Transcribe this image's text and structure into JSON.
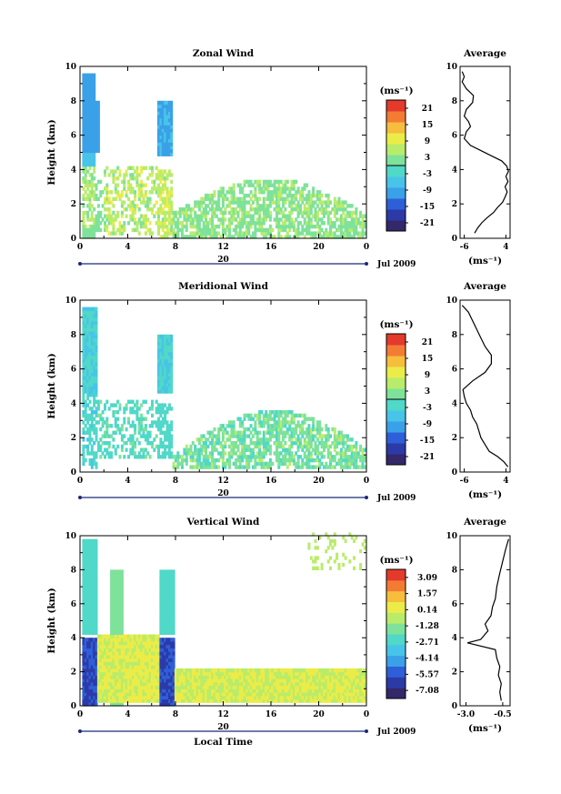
{
  "chart_data": [
    {
      "type": "heatmap",
      "title": "Zonal Wind",
      "ylabel": "Height (km)",
      "xlabel": "",
      "xticks": [
        "0",
        "4",
        "8",
        "12",
        "16",
        "20",
        "0"
      ],
      "yticks": [
        "0",
        "2",
        "4",
        "6",
        "8",
        "10"
      ],
      "xlim": [
        0,
        24
      ],
      "ylim": [
        0,
        10
      ],
      "date_axis_day": "20",
      "date_label": "Jul 2009",
      "colorbar": {
        "unit": "(ms⁻¹)",
        "ticks": [
          "21",
          "15",
          "9",
          "3",
          "-3",
          "-9",
          "-15",
          "-21"
        ],
        "range": [
          -24,
          24
        ]
      },
      "profile": {
        "title": "Average",
        "xlabel": "(ms⁻¹)",
        "xticks": [
          "-6",
          "4"
        ],
        "xlim": [
          -7,
          5
        ],
        "yticks": [
          "0",
          "2",
          "4",
          "6",
          "8",
          "10"
        ],
        "ylim": [
          0,
          10
        ],
        "points": [
          [
            -3.5,
            0.3
          ],
          [
            -2.8,
            0.6
          ],
          [
            -1.8,
            0.9
          ],
          [
            -0.5,
            1.2
          ],
          [
            1.0,
            1.5
          ],
          [
            2.0,
            1.8
          ],
          [
            3.2,
            2.1
          ],
          [
            3.8,
            2.4
          ],
          [
            4.3,
            2.7
          ],
          [
            3.8,
            3.0
          ],
          [
            4.5,
            3.3
          ],
          [
            4.0,
            3.6
          ],
          [
            4.6,
            3.9
          ],
          [
            4.2,
            4.2
          ],
          [
            3.0,
            4.5
          ],
          [
            0.5,
            4.8
          ],
          [
            -2.0,
            5.1
          ],
          [
            -4.5,
            5.4
          ],
          [
            -6.0,
            5.8
          ],
          [
            -5.5,
            6.2
          ],
          [
            -4.5,
            6.5
          ],
          [
            -5.0,
            6.8
          ],
          [
            -6.0,
            7.1
          ],
          [
            -5.5,
            7.5
          ],
          [
            -4.0,
            7.9
          ],
          [
            -3.8,
            8.3
          ],
          [
            -5.5,
            8.7
          ],
          [
            -6.5,
            9.1
          ],
          [
            -6.0,
            9.4
          ],
          [
            -6.5,
            9.7
          ]
        ]
      }
    },
    {
      "type": "heatmap",
      "title": "Meridional Wind",
      "ylabel": "Height (km)",
      "xlabel": "",
      "xticks": [
        "0",
        "4",
        "8",
        "12",
        "16",
        "20",
        "0"
      ],
      "yticks": [
        "0",
        "2",
        "4",
        "6",
        "8",
        "10"
      ],
      "xlim": [
        0,
        24
      ],
      "ylim": [
        0,
        10
      ],
      "date_axis_day": "20",
      "date_label": "Jul 2009",
      "colorbar": {
        "unit": "(ms⁻¹)",
        "ticks": [
          "21",
          "15",
          "9",
          "3",
          "-3",
          "-9",
          "-15",
          "-21"
        ],
        "range": [
          -24,
          24
        ]
      },
      "profile": {
        "title": "Average",
        "xlabel": "(ms⁻¹)",
        "xticks": [
          "-6",
          "4"
        ],
        "xlim": [
          -7,
          5
        ],
        "yticks": [
          "0",
          "2",
          "4",
          "6",
          "8",
          "10"
        ],
        "ylim": [
          0,
          10
        ],
        "points": [
          [
            4.5,
            0.3
          ],
          [
            3.5,
            0.6
          ],
          [
            2.0,
            0.9
          ],
          [
            0.0,
            1.2
          ],
          [
            -1.0,
            1.6
          ],
          [
            -2.0,
            2.0
          ],
          [
            -2.5,
            2.4
          ],
          [
            -3.0,
            2.8
          ],
          [
            -4.0,
            3.2
          ],
          [
            -4.5,
            3.6
          ],
          [
            -5.5,
            4.0
          ],
          [
            -6.0,
            4.4
          ],
          [
            -6.3,
            4.8
          ],
          [
            -4.0,
            5.3
          ],
          [
            -1.0,
            5.8
          ],
          [
            0.5,
            6.3
          ],
          [
            0.5,
            6.8
          ],
          [
            -1.0,
            7.3
          ],
          [
            -2.0,
            7.8
          ],
          [
            -3.0,
            8.3
          ],
          [
            -4.0,
            8.8
          ],
          [
            -5.0,
            9.3
          ],
          [
            -6.5,
            9.7
          ]
        ]
      }
    },
    {
      "type": "heatmap",
      "title": "Vertical Wind",
      "ylabel": "Height (km)",
      "xlabel": "Local Time",
      "xticks": [
        "0",
        "4",
        "8",
        "12",
        "16",
        "20",
        "0"
      ],
      "yticks": [
        "0",
        "2",
        "4",
        "6",
        "8",
        "10"
      ],
      "xlim": [
        0,
        24
      ],
      "ylim": [
        0,
        10
      ],
      "date_axis_day": "20",
      "date_label": "Jul 2009",
      "colorbar": {
        "unit": "(ms⁻¹)",
        "ticks": [
          "3.09",
          "1.57",
          "0.14",
          "-1.28",
          "-2.71",
          "-4.14",
          "-5.57",
          "-7.08"
        ],
        "range": [
          -7.8,
          3.8
        ]
      },
      "profile": {
        "title": "Average",
        "xlabel": "(ms⁻¹)",
        "xticks": [
          "-3.0",
          "-0.5"
        ],
        "xlim": [
          -3.4,
          0.0
        ],
        "yticks": [
          "0",
          "2",
          "4",
          "6",
          "8",
          "10"
        ],
        "ylim": [
          0,
          10
        ],
        "points": [
          [
            -0.6,
            0.3
          ],
          [
            -0.7,
            0.8
          ],
          [
            -0.6,
            1.3
          ],
          [
            -0.8,
            1.8
          ],
          [
            -0.7,
            2.3
          ],
          [
            -0.9,
            2.8
          ],
          [
            -1.0,
            3.3
          ],
          [
            -2.9,
            3.7
          ],
          [
            -2.0,
            3.9
          ],
          [
            -1.5,
            4.4
          ],
          [
            -1.7,
            4.8
          ],
          [
            -1.3,
            5.3
          ],
          [
            -1.2,
            5.8
          ],
          [
            -1.0,
            6.3
          ],
          [
            -0.9,
            7.0
          ],
          [
            -0.7,
            7.8
          ],
          [
            -0.5,
            8.5
          ],
          [
            -0.3,
            9.2
          ],
          [
            -0.1,
            9.8
          ]
        ]
      }
    }
  ]
}
